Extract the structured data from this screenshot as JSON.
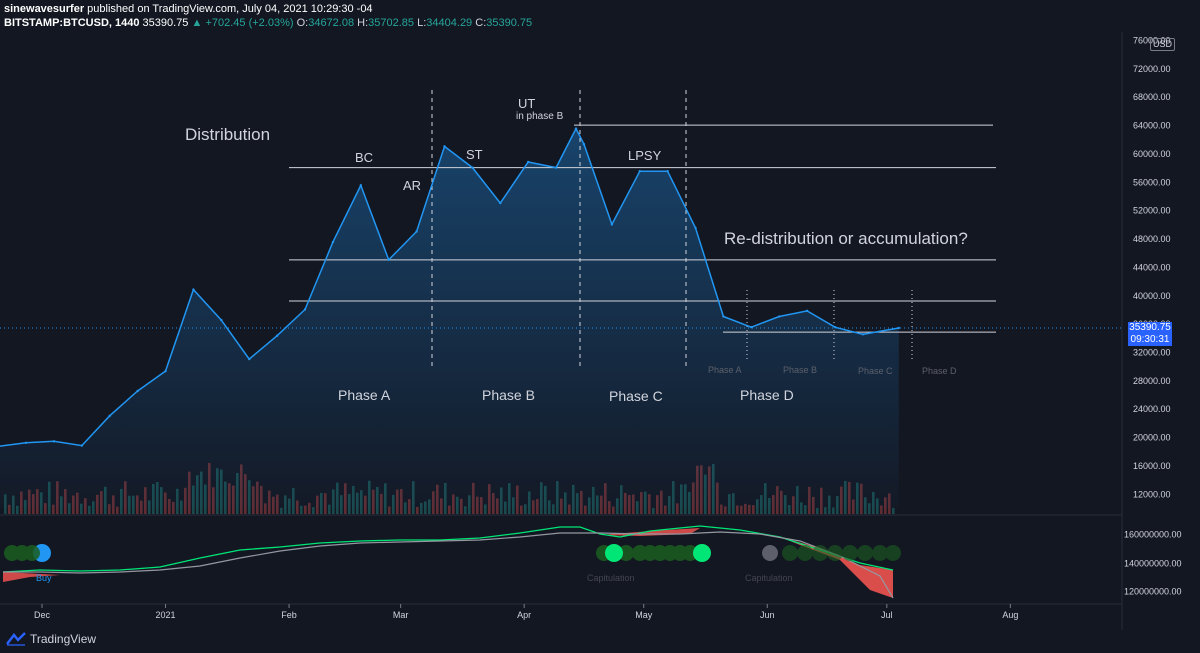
{
  "header": {
    "publisher": "sinewavesurfer",
    "published_text": "published on TradingView.com, July 04, 2021 10:29:30 -04",
    "symbol": "BITSTAMP:BTCUSD, 1440",
    "last_price": "35390.75",
    "change": "▲ +702.45 (+2.03%)",
    "o_label": "O:",
    "o_value": "34672.08",
    "h_label": "H:",
    "h_value": "35702.85",
    "l_label": "L:",
    "l_value": "34404.29",
    "c_label": "C:",
    "c_value": "35390.75"
  },
  "price_axis": {
    "currency": "USD",
    "ticks": [
      "76000.00",
      "72000.00",
      "68000.00",
      "64000.00",
      "60000.00",
      "56000.00",
      "52000.00",
      "48000.00",
      "44000.00",
      "40000.00",
      "36000.00",
      "32000.00",
      "28000.00",
      "24000.00",
      "20000.00",
      "16000.00",
      "12000.00"
    ],
    "current_price": "35390.75",
    "countdown": "09:30:31"
  },
  "indicator_axis": {
    "ticks": [
      "160000000.00",
      "140000000.00",
      "120000000.00"
    ]
  },
  "time_axis": {
    "labels": [
      "Dec",
      "2021",
      "Feb",
      "Mar",
      "Apr",
      "May",
      "Jun",
      "Jul",
      "Aug"
    ]
  },
  "annotations": {
    "distribution": "Distribution",
    "bc": "BC",
    "ar": "AR",
    "st": "ST",
    "ut": "UT",
    "ut_sub": "in phase B",
    "lpsy": "LPSY",
    "redistribution": "Re-distribution or accumulation?",
    "phase_a": "Phase A",
    "phase_b": "Phase B",
    "phase_c": "Phase C",
    "phase_d": "Phase D",
    "small_phase_a": "Phase A",
    "small_phase_b": "Phase B",
    "small_phase_c": "Phase C",
    "small_phase_d": "Phase D",
    "buy": "Buy",
    "capitulation1": "Capitulation",
    "capitulation2": "Capitulation"
  },
  "footer": {
    "brand": "TradingView"
  },
  "colors": {
    "background": "#131722",
    "price_line": "#2196f3",
    "volume_up": "#26a69a",
    "volume_down": "#ef5350",
    "indicator_green": "#00e676",
    "indicator_red": "#ef5350",
    "accent": "#2962ff"
  },
  "chart_data": {
    "type": "line",
    "title": "",
    "x": [
      "2020-11-20",
      "2020-11-27",
      "2020-12-04",
      "2020-12-11",
      "2020-12-18",
      "2020-12-25",
      "2021-01-01",
      "2021-01-08",
      "2021-01-15",
      "2021-01-22",
      "2021-01-29",
      "2021-02-05",
      "2021-02-12",
      "2021-02-19",
      "2021-02-26",
      "2021-03-05",
      "2021-03-12",
      "2021-03-19",
      "2021-03-26",
      "2021-04-02",
      "2021-04-09",
      "2021-04-14",
      "2021-04-16",
      "2021-04-23",
      "2021-04-30",
      "2021-05-07",
      "2021-05-14",
      "2021-05-21",
      "2021-05-28",
      "2021-06-04",
      "2021-06-11",
      "2021-06-18",
      "2021-06-25",
      "2021-07-04"
    ],
    "series": [
      {
        "values": [
          18700,
          19200,
          19400,
          18800,
          23000,
          26500,
          29300,
          40800,
          36500,
          31000,
          34300,
          38000,
          47500,
          55500,
          45000,
          49000,
          61000,
          58000,
          53000,
          58800,
          58000,
          63500,
          61300,
          50000,
          57500,
          57500,
          49500,
          37000,
          35500,
          37000,
          37800,
          35500,
          34500,
          35390
        ]
      }
    ],
    "ylim": [
      10000,
      76000
    ],
    "xlabel": "",
    "ylabel": "",
    "levels": [
      64000,
      58000,
      45000,
      39200,
      34800
    ]
  }
}
